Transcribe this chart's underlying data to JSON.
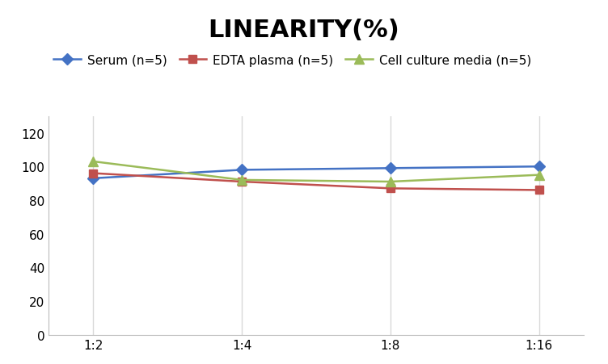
{
  "title": "LINEARITY(%)",
  "x_labels": [
    "1:2",
    "1:4",
    "1:8",
    "1:16"
  ],
  "x_positions": [
    0,
    1,
    2,
    3
  ],
  "series": [
    {
      "label": "Serum (n=5)",
      "values": [
        93,
        98,
        99,
        100
      ],
      "color": "#4472C4",
      "marker": "D",
      "markersize": 7,
      "linewidth": 1.8
    },
    {
      "label": "EDTA plasma (n=5)",
      "values": [
        96,
        91,
        87,
        86
      ],
      "color": "#C0504D",
      "marker": "s",
      "markersize": 7,
      "linewidth": 1.8
    },
    {
      "label": "Cell culture media (n=5)",
      "values": [
        103,
        92,
        91,
        95
      ],
      "color": "#9BBB59",
      "marker": "^",
      "markersize": 8,
      "linewidth": 1.8
    }
  ],
  "ylim": [
    0,
    130
  ],
  "yticks": [
    0,
    20,
    40,
    60,
    80,
    100,
    120
  ],
  "title_fontsize": 22,
  "title_fontweight": "bold",
  "legend_fontsize": 11,
  "tick_fontsize": 11,
  "grid_color": "#D9D9D9",
  "background_color": "#FFFFFF"
}
